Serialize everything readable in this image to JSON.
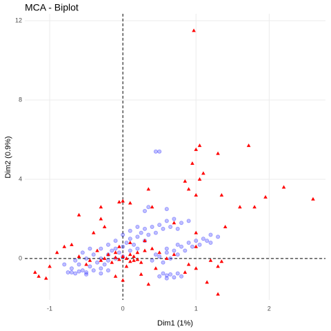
{
  "chart_data": {
    "type": "scatter",
    "title": "MCA - Biplot",
    "xlabel": "Dim1 (1%)",
    "ylabel": "Dim2 (0.9%)",
    "xlim": [
      -1.34,
      2.77
    ],
    "ylim": [
      -2.09,
      12.35
    ],
    "xticks": [
      -1,
      0,
      1,
      2
    ],
    "yticks": [
      0,
      4,
      8,
      12
    ],
    "grid": true,
    "hlines": [
      0
    ],
    "vlines": [
      0
    ],
    "series": [
      {
        "color": "#0000ff",
        "marker": "circle",
        "x": [
          -0.65,
          -0.55,
          -0.5,
          -0.45,
          -0.4,
          -0.35,
          -0.3,
          -0.3,
          -0.25,
          -0.2,
          -0.2,
          -0.15,
          -0.1,
          -0.1,
          -0.05,
          0,
          0,
          0.05,
          0.1,
          0.1,
          0.15,
          0.2,
          0.2,
          0.25,
          0.3,
          0.3,
          0.35,
          0.4,
          0.45,
          0.5,
          0.55,
          0.6,
          0.65,
          -0.7,
          -0.6,
          -0.5,
          -0.4,
          -0.3,
          -0.2,
          -0.1,
          0,
          0.1,
          0.2,
          -0.75,
          -0.8,
          -0.65,
          -0.55,
          -0.45,
          0.7,
          0.8,
          0.9,
          0.75,
          0.45,
          0.5,
          0.35,
          0.3,
          0.6,
          0.4,
          0.5,
          0.55,
          0.6,
          0.65,
          0.7,
          0.75,
          0.8,
          0.85,
          0.9,
          0.95,
          1.0,
          1.05,
          1.1,
          1.15,
          1.2,
          0.45,
          0.6,
          0.75,
          1.2,
          1.3,
          0.5,
          0.55,
          0.6,
          0.65,
          0.7,
          0.75,
          0.8,
          0.6,
          -0.7,
          -0.6,
          -0.5,
          -0.3,
          -0.2
        ],
        "y": [
          -0.75,
          -0.6,
          -0.8,
          -0.4,
          -0.6,
          -0.2,
          -0.5,
          0.0,
          -0.3,
          0.2,
          -0.1,
          0.4,
          0.0,
          0.5,
          0.3,
          0.6,
          0.1,
          0.8,
          0.4,
          1.0,
          0.7,
          1.1,
          0.5,
          1.3,
          0.9,
          1.5,
          1.2,
          1.6,
          1.3,
          1.7,
          1.5,
          1.9,
          1.6,
          -0.5,
          -0.3,
          0.0,
          0.2,
          0.5,
          0.7,
          0.9,
          1.2,
          1.4,
          1.6,
          -0.7,
          -0.3,
          -0.1,
          0.3,
          0.5,
          2.0,
          1.8,
          1.9,
          1.5,
          5.4,
          5.4,
          2.6,
          2.4,
          2.5,
          -0.1,
          0.1,
          -0.2,
          0.3,
          0.0,
          0.4,
          0.2,
          0.6,
          0.4,
          0.8,
          0.6,
          0.9,
          0.7,
          1.0,
          0.9,
          1.2,
          0.2,
          0.5,
          0.7,
          0.8,
          1.1,
          -0.9,
          -0.75,
          -1.0,
          -0.8,
          -0.95,
          -0.75,
          -0.9,
          -0.85,
          -0.7,
          -0.65,
          -0.7,
          -0.75,
          -0.6
        ]
      },
      {
        "color": "#ff0000",
        "marker": "triangle",
        "x": [
          0.97,
          1.05,
          1.0,
          1.3,
          1.72,
          0.95,
          1.1,
          0.9,
          0.85,
          1.05,
          0.35,
          0.1,
          0.0,
          -0.05,
          0.4,
          2.2,
          2.6,
          1.95,
          1.8,
          1.6,
          1.35,
          1.0,
          1.4,
          1.0,
          0.7,
          -0.3,
          -0.3,
          -0.6,
          -0.25,
          -0.4,
          -0.7,
          -0.8,
          -0.9,
          -1.2,
          -1.15,
          -1.05,
          -1.0,
          -0.5,
          -0.3,
          -0.2,
          -0.1,
          0,
          0.1,
          0.15,
          0.2,
          0.3,
          -0.15,
          0.05,
          0.25,
          0.4,
          0.5,
          -0.35,
          -0.05,
          0.1,
          0.3,
          0.45,
          0.25,
          -0.1,
          0.0,
          0.35,
          0.9,
          1.0,
          1.2,
          1.15,
          1.3,
          1.3,
          1.0,
          0.7,
          -0.6,
          -0.45,
          0.6,
          1.35,
          0.85,
          -0.1,
          0.05,
          0.15,
          -0.25,
          0.2,
          0.1,
          -0.05
        ],
        "y": [
          11.5,
          5.7,
          5.5,
          5.3,
          5.7,
          4.8,
          4.3,
          3.5,
          3.9,
          4.0,
          3.5,
          2.8,
          2.9,
          2.85,
          2.6,
          3.6,
          3.0,
          3.1,
          2.6,
          2.6,
          3.2,
          3.2,
          1.6,
          1.3,
          1.8,
          2.6,
          2.0,
          2.2,
          1.6,
          1.3,
          0.7,
          0.6,
          0.3,
          -0.7,
          -0.9,
          -1.0,
          -0.4,
          -0.3,
          -0.1,
          0.2,
          0.3,
          0.1,
          0.2,
          -0.1,
          0.3,
          0.4,
          -0.2,
          -0.4,
          -0.2,
          0.5,
          0.3,
          0.4,
          0.6,
          0.8,
          0.9,
          -0.5,
          -0.8,
          -0.9,
          -1.1,
          -1.3,
          -0.3,
          -0.5,
          -0.1,
          -1.2,
          -1.8,
          -0.4,
          0.6,
          0.2,
          0.1,
          -0.1,
          0.0,
          -0.15,
          -0.7,
          0.05,
          0.0,
          0.1,
          0.0,
          -0.05,
          -0.15,
          -0.05
        ]
      }
    ]
  }
}
